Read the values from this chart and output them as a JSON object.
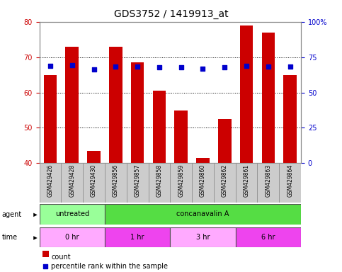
{
  "title": "GDS3752 / 1419913_at",
  "samples": [
    "GSM429426",
    "GSM429428",
    "GSM429430",
    "GSM429856",
    "GSM429857",
    "GSM429858",
    "GSM429859",
    "GSM429860",
    "GSM429862",
    "GSM429861",
    "GSM429863",
    "GSM429864"
  ],
  "counts": [
    65.0,
    73.0,
    43.5,
    73.0,
    68.5,
    60.5,
    55.0,
    41.5,
    52.5,
    79.0,
    77.0,
    65.0
  ],
  "percentiles": [
    69.0,
    69.5,
    66.5,
    68.5,
    68.5,
    68.0,
    68.0,
    67.0,
    68.0,
    69.0,
    68.5,
    68.5
  ],
  "ylim_left": [
    40,
    80
  ],
  "ylim_right": [
    0,
    100
  ],
  "yticks_left": [
    40,
    50,
    60,
    70,
    80
  ],
  "yticks_right": [
    0,
    25,
    50,
    75,
    100
  ],
  "ytick_labels_right": [
    "0",
    "25",
    "50",
    "75",
    "100%"
  ],
  "ytick_labels_left": [
    "40",
    "50",
    "60",
    "70",
    "80"
  ],
  "bar_color": "#cc0000",
  "dot_color": "#0000cc",
  "bar_width": 0.6,
  "agent_labels": [
    {
      "text": "untreated",
      "start": 0,
      "end": 3,
      "color": "#99ff99"
    },
    {
      "text": "concanavalin A",
      "start": 3,
      "end": 12,
      "color": "#55dd44"
    }
  ],
  "time_labels": [
    {
      "text": "0 hr",
      "start": 0,
      "end": 3,
      "color": "#ffaaff"
    },
    {
      "text": "1 hr",
      "start": 3,
      "end": 6,
      "color": "#ee44ee"
    },
    {
      "text": "3 hr",
      "start": 6,
      "end": 9,
      "color": "#ffaaff"
    },
    {
      "text": "6 hr",
      "start": 9,
      "end": 12,
      "color": "#ee44ee"
    }
  ],
  "left_tick_color": "#cc0000",
  "right_tick_color": "#0000cc",
  "title_fontsize": 10,
  "tick_fontsize": 7,
  "sample_fontsize": 5.5,
  "row_fontsize": 7,
  "legend_fontsize": 7,
  "bg_color": "#ffffff",
  "xtick_bg": "#cccccc",
  "xtick_border": "#888888"
}
